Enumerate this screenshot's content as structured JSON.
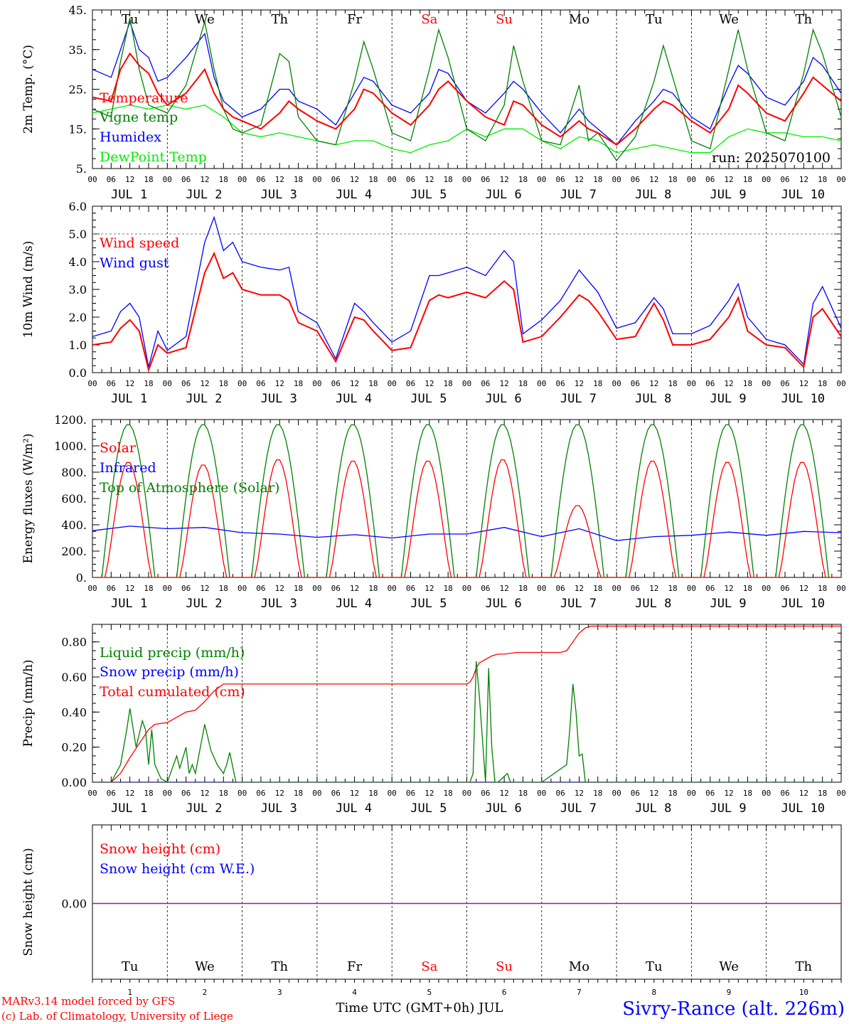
{
  "days": [
    "Tu",
    "We",
    "Th",
    "Fr",
    "Sa",
    "Su",
    "Mo",
    "Tu",
    "We",
    "Th"
  ],
  "weekend_indices": [
    4,
    5
  ],
  "dates": [
    "JUL  1",
    "JUL  2",
    "JUL  3",
    "JUL  4",
    "JUL  5",
    "JUL  6",
    "JUL  7",
    "JUL  8",
    "JUL  9",
    "JUL 10"
  ],
  "hour_labels": [
    "00",
    "06",
    "12",
    "18"
  ],
  "last_hour_label": "00",
  "day_numbers": [
    "1",
    "2",
    "3",
    "4",
    "5",
    "6",
    "7",
    "8",
    "9",
    "10"
  ],
  "colors": {
    "red": "#ff0000",
    "blue": "#0000ff",
    "green": "#008000",
    "lightgreen": "#00ee00",
    "weekend": "#ff0000"
  },
  "footer": {
    "credit1": "MARv3.14 model forced by GFS",
    "credit2": "(c) Lab. of Climatology, University of Liege",
    "xlabel": "Time UTC (GMT+0h) JUL",
    "station": "Sivry-Rance (alt. 226m)"
  },
  "chart_data": [
    {
      "type": "line",
      "id": "temp",
      "ylabel": "2m Temp. (°C)",
      "ylim": [
        5,
        45
      ],
      "yticks": [
        "5.",
        "15.",
        "25.",
        "35.",
        "45."
      ],
      "yticks_values": [
        5,
        15,
        25,
        35,
        45
      ],
      "run_label": "run: 2025070100",
      "x_unit": "hours since JUL 1 00 UTC",
      "series": [
        {
          "name": "Temperature",
          "color": "red",
          "x": [
            0,
            6,
            9,
            12,
            15,
            18,
            21,
            24,
            30,
            36,
            39,
            42,
            45,
            48,
            54,
            60,
            63,
            66,
            72,
            78,
            84,
            87,
            90,
            96,
            102,
            108,
            111,
            114,
            120,
            126,
            132,
            135,
            138,
            144,
            150,
            156,
            159,
            162,
            168,
            174,
            180,
            183,
            186,
            192,
            198,
            204,
            207,
            210,
            216,
            222,
            228,
            231,
            234,
            240
          ],
          "y": [
            23,
            22,
            30,
            34,
            31,
            29,
            24,
            21,
            24,
            30,
            24,
            20,
            18,
            17,
            15,
            19,
            22,
            20,
            17,
            15,
            20,
            25,
            24,
            19,
            16,
            21,
            25,
            27,
            22,
            18,
            16,
            22,
            21,
            16,
            13,
            17,
            15,
            14,
            11,
            15,
            20,
            22,
            21,
            17,
            14,
            20,
            26,
            24,
            19,
            17,
            24,
            28,
            26,
            22
          ]
        },
        {
          "name": "Vigne temp",
          "color": "green",
          "x": [
            0,
            6,
            9,
            12,
            15,
            18,
            21,
            24,
            30,
            36,
            39,
            42,
            45,
            48,
            54,
            60,
            63,
            66,
            72,
            78,
            84,
            87,
            90,
            96,
            102,
            108,
            111,
            114,
            120,
            126,
            132,
            135,
            138,
            144,
            150,
            156,
            159,
            162,
            168,
            174,
            180,
            183,
            186,
            192,
            198,
            204,
            207,
            210,
            216,
            222,
            228,
            231,
            234,
            240
          ],
          "y": [
            20,
            18,
            32,
            43,
            30,
            21,
            20,
            19,
            26,
            42,
            30,
            20,
            15,
            14,
            16,
            34,
            32,
            18,
            12,
            11,
            27,
            37,
            30,
            14,
            12,
            30,
            40,
            33,
            15,
            12,
            21,
            36,
            27,
            12,
            11,
            26,
            12,
            14,
            7,
            13,
            27,
            36,
            28,
            12,
            10,
            30,
            40,
            30,
            14,
            12,
            29,
            40,
            34,
            18
          ]
        },
        {
          "name": "Humidex",
          "color": "blue",
          "x": [
            0,
            6,
            9,
            12,
            15,
            18,
            21,
            24,
            30,
            36,
            39,
            42,
            45,
            48,
            54,
            60,
            63,
            66,
            72,
            78,
            84,
            87,
            90,
            96,
            102,
            108,
            111,
            114,
            120,
            126,
            132,
            135,
            138,
            144,
            150,
            156,
            159,
            162,
            168,
            174,
            180,
            183,
            186,
            192,
            198,
            204,
            207,
            210,
            216,
            222,
            228,
            231,
            234,
            240
          ],
          "y": [
            30,
            28,
            35,
            42,
            35,
            33,
            27,
            28,
            33,
            39,
            28,
            22,
            20,
            18,
            20,
            25,
            25,
            22,
            20,
            16,
            24,
            28,
            27,
            21,
            19,
            24,
            30,
            29,
            22,
            19,
            24,
            27,
            25,
            19,
            14,
            20,
            17,
            15,
            11,
            17,
            22,
            25,
            24,
            18,
            15,
            26,
            31,
            29,
            23,
            21,
            27,
            33,
            31,
            24
          ]
        },
        {
          "name": "DewPoint Temp",
          "color": "lightgreen",
          "x": [
            0,
            6,
            12,
            18,
            24,
            30,
            36,
            42,
            48,
            54,
            60,
            66,
            72,
            78,
            84,
            90,
            96,
            102,
            108,
            114,
            120,
            126,
            132,
            138,
            144,
            150,
            156,
            162,
            168,
            174,
            180,
            186,
            192,
            198,
            204,
            210,
            216,
            222,
            228,
            234,
            240
          ],
          "y": [
            19,
            20,
            21,
            20,
            21,
            20,
            21,
            18,
            14,
            13,
            14,
            13,
            12,
            11,
            12,
            12,
            10,
            9,
            11,
            12,
            15,
            13,
            15,
            15,
            12,
            10,
            13,
            12,
            9,
            10,
            11,
            10,
            9,
            9,
            13,
            15,
            14,
            14,
            13,
            13,
            12
          ]
        }
      ]
    },
    {
      "type": "line",
      "id": "wind",
      "ylabel": "10m Wind (m/s)",
      "ylim": [
        0,
        6
      ],
      "yticks": [
        "0.0",
        "1.0",
        "2.0",
        "3.0",
        "4.0",
        "5.0",
        "6.0"
      ],
      "yticks_values": [
        0,
        1,
        2,
        3,
        4,
        5,
        6
      ],
      "hline": 5,
      "x_unit": "hours since JUL 1 00 UTC",
      "series": [
        {
          "name": "Wind speed",
          "color": "red",
          "x": [
            0,
            6,
            9,
            12,
            15,
            18,
            21,
            24,
            30,
            36,
            39,
            42,
            45,
            48,
            54,
            60,
            63,
            66,
            72,
            78,
            84,
            87,
            90,
            96,
            102,
            108,
            111,
            114,
            120,
            126,
            132,
            135,
            138,
            144,
            150,
            156,
            159,
            162,
            168,
            174,
            180,
            183,
            186,
            192,
            198,
            204,
            207,
            210,
            216,
            222,
            228,
            231,
            234,
            240
          ],
          "y": [
            1.0,
            1.1,
            1.6,
            1.9,
            1.5,
            0.1,
            1.0,
            0.7,
            0.9,
            3.6,
            4.3,
            3.4,
            3.6,
            3.0,
            2.8,
            2.8,
            2.6,
            1.8,
            1.5,
            0.4,
            2.0,
            1.9,
            1.5,
            0.8,
            0.9,
            2.6,
            2.8,
            2.7,
            2.9,
            2.7,
            3.3,
            3.0,
            1.1,
            1.3,
            2.0,
            2.8,
            2.6,
            2.2,
            1.2,
            1.3,
            2.5,
            1.9,
            1.0,
            1.0,
            1.2,
            2.0,
            2.7,
            1.5,
            1.0,
            0.9,
            0.2,
            2.0,
            2.3,
            1.3
          ]
        },
        {
          "name": "Wind gust",
          "color": "blue",
          "x": [
            0,
            6,
            9,
            12,
            15,
            18,
            21,
            24,
            30,
            36,
            39,
            42,
            45,
            48,
            54,
            60,
            63,
            66,
            72,
            78,
            84,
            87,
            90,
            96,
            102,
            108,
            111,
            114,
            120,
            126,
            132,
            135,
            138,
            144,
            150,
            156,
            159,
            162,
            168,
            174,
            180,
            183,
            186,
            192,
            198,
            204,
            207,
            210,
            216,
            222,
            228,
            231,
            234,
            240
          ],
          "y": [
            1.3,
            1.5,
            2.2,
            2.5,
            2.0,
            0.2,
            1.5,
            0.8,
            1.3,
            4.7,
            5.6,
            4.4,
            4.7,
            4.0,
            3.8,
            3.7,
            3.8,
            2.2,
            1.8,
            0.5,
            2.5,
            2.2,
            1.8,
            1.1,
            1.5,
            3.5,
            3.5,
            3.6,
            3.8,
            3.5,
            4.4,
            4.0,
            1.4,
            1.9,
            2.6,
            3.7,
            3.3,
            2.9,
            1.6,
            1.8,
            2.7,
            2.3,
            1.4,
            1.4,
            1.7,
            2.6,
            3.2,
            2.0,
            1.2,
            1.0,
            0.3,
            2.5,
            3.1,
            1.6
          ]
        }
      ]
    },
    {
      "type": "line",
      "id": "energy",
      "ylabel": "Energy fluxes (W/m2)",
      "ylim": [
        0,
        1200
      ],
      "yticks": [
        "0.",
        "200.",
        "400.",
        "600.",
        "800.",
        "1000.",
        "1200."
      ],
      "yticks_values": [
        0,
        200,
        400,
        600,
        800,
        1000,
        1200
      ],
      "x_unit": "hours since JUL 1 00 UTC",
      "solar_peaks": [
        880,
        860,
        900,
        890,
        890,
        900,
        550,
        890,
        880,
        880
      ],
      "toa_peak": 1165,
      "series": [
        {
          "name": "Solar",
          "color": "red",
          "x": [],
          "y": []
        },
        {
          "name": "Infrared",
          "color": "blue",
          "x": [
            0,
            12,
            24,
            36,
            48,
            60,
            72,
            84,
            96,
            108,
            120,
            132,
            144,
            156,
            168,
            180,
            192,
            204,
            216,
            228,
            240
          ],
          "y": [
            355,
            390,
            370,
            380,
            340,
            330,
            305,
            325,
            300,
            330,
            330,
            380,
            310,
            370,
            280,
            310,
            320,
            345,
            320,
            350,
            340
          ]
        },
        {
          "name": "Top of Atmosphere (Solar)",
          "color": "green",
          "x": [],
          "y": []
        }
      ]
    },
    {
      "type": "line",
      "id": "precip",
      "ylabel": "Precip (mm/h)",
      "ylim": [
        0,
        0.9
      ],
      "yticks": [
        "0.00",
        "0.20",
        "0.40",
        "0.60",
        "0.80"
      ],
      "yticks_values": [
        0,
        0.2,
        0.4,
        0.6,
        0.8
      ],
      "x_unit": "hours since JUL 1 00 UTC",
      "series": [
        {
          "name": "Liquid precip (mm/h)",
          "color": "green",
          "x": [
            0,
            6,
            9,
            11,
            12,
            14,
            16,
            17,
            18,
            19,
            20,
            22,
            24,
            25,
            26,
            27,
            28,
            30,
            31,
            32,
            33,
            36,
            38,
            40,
            42,
            43,
            44,
            46,
            48,
            108,
            121,
            122,
            123,
            124,
            126,
            127,
            128,
            129,
            130,
            133,
            134,
            136,
            144,
            152,
            153,
            154,
            155,
            156,
            157,
            158,
            160,
            240
          ],
          "y": [
            0,
            0,
            0.1,
            0.3,
            0.42,
            0.2,
            0.35,
            0.3,
            0.1,
            0.3,
            0.1,
            0.02,
            0,
            0.05,
            0.1,
            0.15,
            0.08,
            0.2,
            0.05,
            0.1,
            0.05,
            0.33,
            0.18,
            0.1,
            0.05,
            0.1,
            0.17,
            0,
            0,
            0,
            0,
            0.05,
            0.69,
            0.5,
            0,
            0.65,
            0.2,
            0,
            0,
            0.05,
            0,
            0,
            0,
            0.1,
            0.3,
            0.56,
            0.4,
            0.15,
            0.16,
            0,
            0,
            0
          ]
        },
        {
          "name": "Snow precip (mm/h)",
          "color": "blue",
          "x": [
            0,
            240
          ],
          "y": [
            0,
            0
          ]
        },
        {
          "name": "Total cumulated (cm)",
          "color": "red",
          "x": [
            0,
            6,
            9,
            12,
            15,
            18,
            20,
            24,
            30,
            33,
            36,
            39,
            42,
            48,
            120,
            121,
            122,
            123,
            124,
            126,
            128,
            130,
            132,
            136,
            138,
            144,
            150,
            152,
            154,
            156,
            158,
            160,
            240
          ],
          "y": [
            0,
            0,
            0.05,
            0.14,
            0.22,
            0.3,
            0.33,
            0.34,
            0.4,
            0.41,
            0.46,
            0.52,
            0.56,
            0.56,
            0.56,
            0.57,
            0.6,
            0.65,
            0.68,
            0.7,
            0.72,
            0.73,
            0.73,
            0.74,
            0.74,
            0.74,
            0.74,
            0.75,
            0.8,
            0.85,
            0.88,
            0.89,
            0.89
          ]
        }
      ]
    },
    {
      "type": "line",
      "id": "snow",
      "ylabel": "Snow height (cm)",
      "yticks": [
        "0.00"
      ],
      "yticks_values": [
        0
      ],
      "x_unit": "hours since JUL 1 00 UTC",
      "series": [
        {
          "name": "Snow height (cm)",
          "color": "red",
          "x": [
            0,
            240
          ],
          "y": [
            0,
            0
          ]
        },
        {
          "name": "Snow height (cm W.E.)",
          "color": "blue",
          "x": [
            0,
            240
          ],
          "y": [
            0,
            0
          ]
        }
      ]
    }
  ]
}
